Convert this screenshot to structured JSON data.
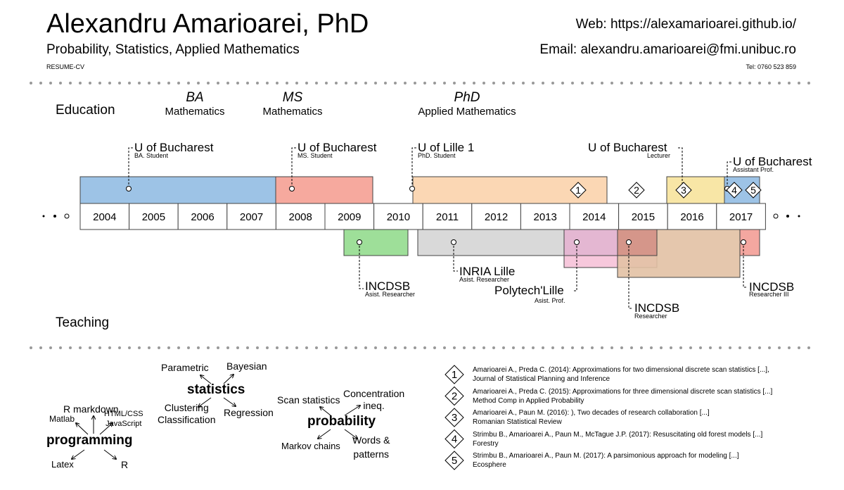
{
  "header": {
    "name": "Alexandru Amarioarei, PhD",
    "subtitle": "Probability, Statistics, Applied Mathematics",
    "resume_label": "RESUME-CV",
    "web": "Web: https://alexamarioarei.github.io/",
    "email": "Email: alexandru.amarioarei@fmi.unibuc.ro",
    "tel": "Tel: 0760 523 859"
  },
  "sections": {
    "education": "Education",
    "teaching": "Teaching"
  },
  "degrees": [
    {
      "title": "BA",
      "field": "Mathematics"
    },
    {
      "title": "MS",
      "field": "Mathematics"
    },
    {
      "title": "PhD",
      "field": "Applied Mathematics"
    }
  ],
  "years": [
    "2004",
    "2005",
    "2006",
    "2007",
    "2008",
    "2009",
    "2010",
    "2011",
    "2012",
    "2013",
    "2014",
    "2015",
    "2016",
    "2017"
  ],
  "education_positions": [
    {
      "institution": "U of Bucharest",
      "role": "BA. Student"
    },
    {
      "institution": "U of Bucharest",
      "role": "MS. Student"
    },
    {
      "institution": "U of Lille 1",
      "role": "PhD. Student"
    },
    {
      "institution": "U of Bucharest",
      "role": "Lecturer"
    },
    {
      "institution": "U of Bucharest",
      "role": "Assistant Prof."
    }
  ],
  "work_positions": [
    {
      "institution": "INCDSB",
      "role": "Asist. Researcher"
    },
    {
      "institution": "INRIA Lille",
      "role": "Asist. Researcher"
    },
    {
      "institution": "Polytech'Lille",
      "role": "Asist. Prof."
    },
    {
      "institution": "INCDSB",
      "role": "Researcher"
    },
    {
      "institution": "INCDSB",
      "role": "Researcher III"
    }
  ],
  "colors": {
    "ba": "#9dc3e6",
    "ms": "#f6a99e",
    "phd": "#fbd7b4",
    "lecturer": "#f8e6a6",
    "assistant": "#9dc3e6",
    "incdsb1": "#9edf99",
    "inria": "#d9d9d9",
    "polytech": "#f7c8dc",
    "incdsb2": "#e2c1a4",
    "incdsb3": "#f4a7a0"
  },
  "skills": {
    "statistics": {
      "title": "statistics",
      "items": [
        "Parametric",
        "Bayesian",
        "Clustering\nClassification",
        "Regression"
      ]
    },
    "programming": {
      "title": "programming",
      "items": [
        "R markdown",
        "Matlab",
        "HTML/CSS\nJavaScript",
        "Latex",
        "R"
      ]
    },
    "probability": {
      "title": "probability",
      "items": [
        "Scan statistics",
        "Concentration\nineq.",
        "Markov chains",
        "Words &\npatterns"
      ]
    }
  },
  "publications": [
    {
      "num": "1",
      "line1": "Amarioarei A., Preda C. (2014): Approximations for two dimensional discrete scan statistics [...],",
      "line2": "Journal of Statistical Planning and Inference"
    },
    {
      "num": "2",
      "line1": "Amarioarei A., Preda C. (2015): Approximations for three dimensional discrete scan statistics [...]",
      "line2": "Method Comp in Applied Probability"
    },
    {
      "num": "3",
      "line1": "Amarioarei A., Paun M. (2016): ), Two decades of research collaboration [...]",
      "line2": "Romanian Statistical Review"
    },
    {
      "num": "4",
      "line1": "Strimbu B., Amarioarei A., Paun M., McTague J.P. (2017): Resuscitating old forest models [...]",
      "line2": "Forestry"
    },
    {
      "num": "5",
      "line1": "Strimbu B., Amarioarei A., Paun M. (2017): A parsimonious approach for modeling [...]",
      "line2": "Ecosphere"
    }
  ]
}
